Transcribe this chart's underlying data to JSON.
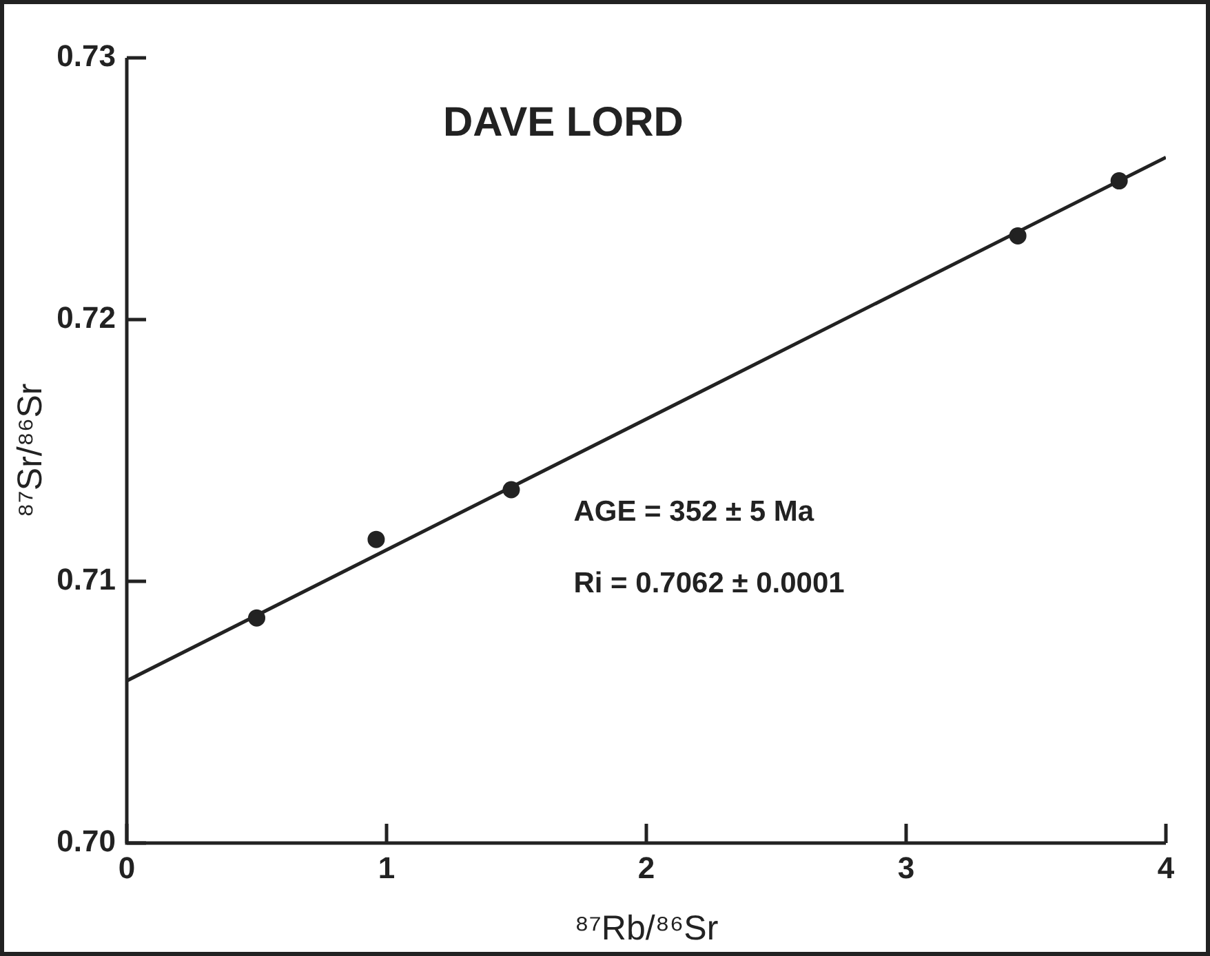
{
  "chart_data": {
    "type": "scatter",
    "title": "DAVE LORD",
    "xlabel": "⁸⁷Rb/⁸⁶Sr",
    "ylabel": "⁸⁷Sr/⁸⁶Sr",
    "annotations": [
      "AGE = 352 ± 5 Ma",
      "Ri = 0.7062 ± 0.0001"
    ],
    "xlim": [
      0,
      4
    ],
    "xticks": [
      0,
      1,
      2,
      3,
      4
    ],
    "ylim": [
      0.7,
      0.73
    ],
    "yticks": [
      {
        "value": 0.7,
        "label": "0.70"
      },
      0.71,
      0.72,
      0.73
    ],
    "grid": false,
    "legend": false,
    "marker": "circle",
    "series": [
      {
        "color": "#222222",
        "x": [
          0.5,
          0.96,
          1.48,
          3.43,
          3.82
        ],
        "values": [
          0.7086,
          0.7116,
          0.7135,
          0.7232,
          0.7253
        ]
      },
      {
        "type": "line",
        "color": "#222222",
        "x": [
          0,
          4
        ],
        "values": [
          0.7062,
          0.7262
        ],
        "marker": "none",
        "line_style": "solid"
      }
    ]
  }
}
